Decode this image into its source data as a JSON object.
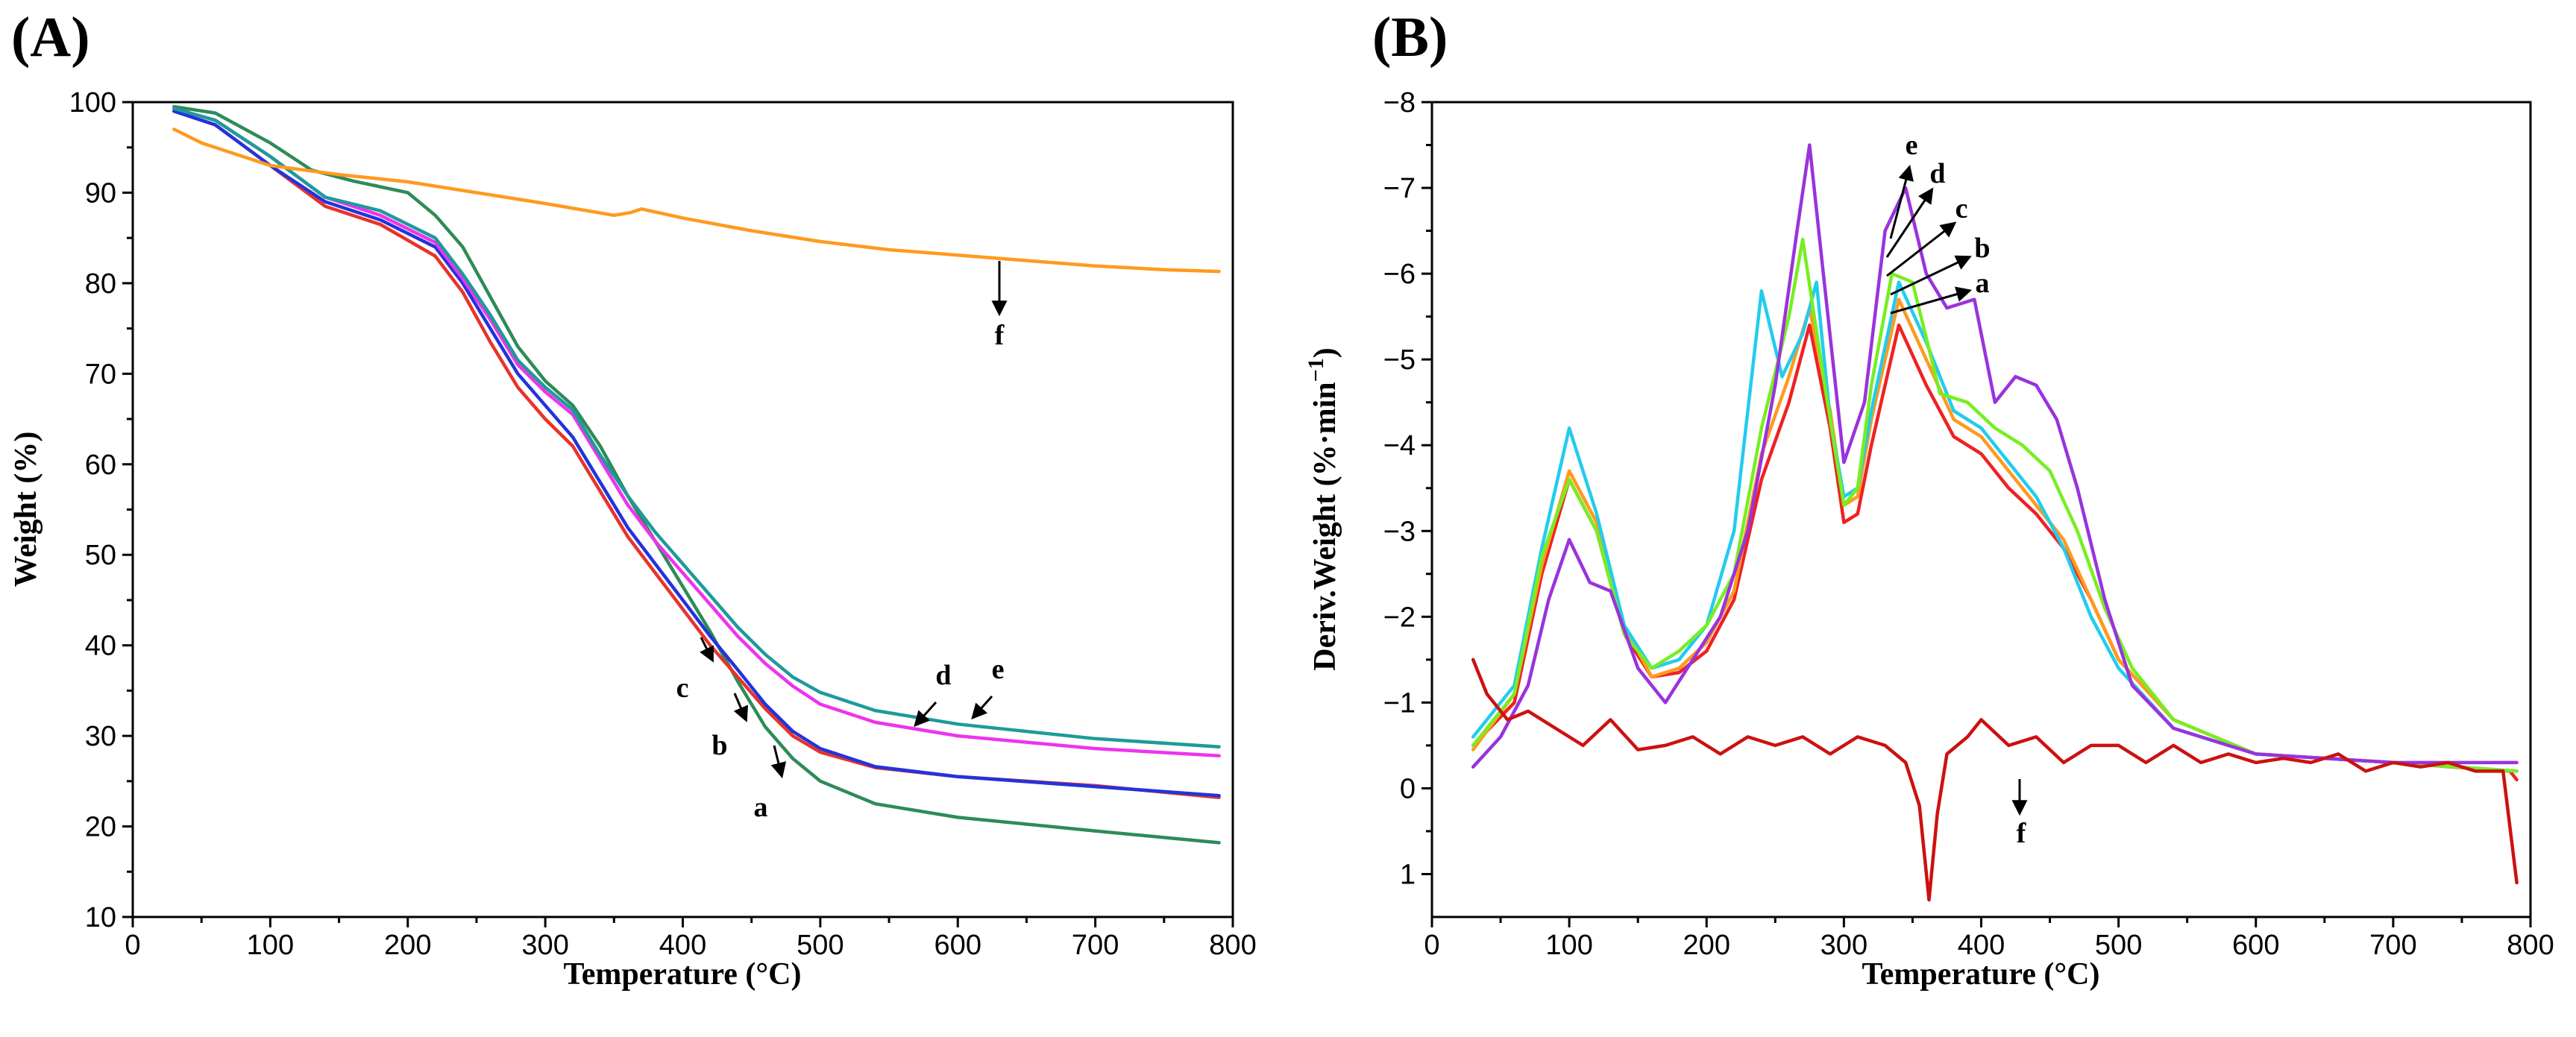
{
  "colors": {
    "a": "#2e8b57",
    "b": "#e8332a",
    "c": "#2233dd",
    "d": "#ee33ee",
    "e": "#1f9a9a",
    "f": "#ff9a1e",
    "pa": "#ee2222",
    "pb": "#ff9a1e",
    "pc": "#22ccee",
    "pd": "#77ee22",
    "pe": "#9933dd",
    "pf": "#cc1111"
  },
  "chart_data": [
    {
      "type": "line",
      "panel_label": "(A)",
      "xlabel": "Temperature (°C)",
      "ylabel": "Weight (%)",
      "xlim": [
        0,
        800
      ],
      "ylim": [
        10,
        100
      ],
      "xticks": [
        "0",
        "100",
        "200",
        "300",
        "400",
        "500",
        "600",
        "700",
        "800"
      ],
      "yticks": [
        "10",
        "20",
        "30",
        "40",
        "50",
        "60",
        "70",
        "80",
        "90",
        "100"
      ],
      "series": [
        {
          "name": "a",
          "color": "#2e8b57",
          "x": [
            30,
            60,
            100,
            130,
            160,
            200,
            220,
            240,
            260,
            280,
            300,
            320,
            340,
            360,
            380,
            400,
            420,
            440,
            460,
            480,
            500,
            540,
            600,
            700,
            790
          ],
          "y": [
            99.5,
            98.8,
            95.5,
            92.5,
            91.3,
            90,
            87.5,
            84,
            78.5,
            73,
            69.2,
            66.5,
            62,
            56.5,
            51.5,
            46.5,
            41.5,
            36,
            31,
            27.5,
            25,
            22.5,
            21,
            19.5,
            18.2
          ]
        },
        {
          "name": "b",
          "color": "#e8332a",
          "x": [
            30,
            60,
            100,
            140,
            180,
            220,
            240,
            260,
            280,
            300,
            320,
            340,
            360,
            380,
            400,
            420,
            440,
            460,
            480,
            500,
            540,
            600,
            700,
            790
          ],
          "y": [
            99,
            97.5,
            93,
            88.5,
            86.5,
            83,
            79,
            73.5,
            68.5,
            65,
            62,
            57,
            52,
            48,
            44,
            40,
            36.5,
            33,
            30,
            28.2,
            26.5,
            25.5,
            24.5,
            23.2
          ]
        },
        {
          "name": "c",
          "color": "#2233dd",
          "x": [
            30,
            60,
            100,
            140,
            180,
            220,
            240,
            260,
            280,
            300,
            320,
            340,
            360,
            380,
            400,
            420,
            440,
            460,
            480,
            500,
            540,
            600,
            700,
            790
          ],
          "y": [
            99,
            97.5,
            93,
            89,
            87,
            84,
            80,
            75,
            70,
            66.5,
            63,
            58,
            53,
            49,
            45,
            41,
            37.3,
            33.5,
            30.5,
            28.6,
            26.6,
            25.5,
            24.4,
            23.4
          ]
        },
        {
          "name": "d",
          "color": "#ee33ee",
          "x": [
            30,
            60,
            100,
            140,
            180,
            220,
            240,
            260,
            280,
            300,
            320,
            340,
            360,
            380,
            400,
            420,
            440,
            460,
            480,
            500,
            540,
            600,
            700,
            790
          ],
          "y": [
            99.3,
            98,
            94,
            89.5,
            87.5,
            84.5,
            80.5,
            76,
            71,
            68,
            65.5,
            60.5,
            55.5,
            51.5,
            48,
            44.5,
            41,
            38,
            35.5,
            33.5,
            31.5,
            30,
            28.6,
            27.8
          ]
        },
        {
          "name": "e",
          "color": "#1f9a9a",
          "x": [
            30,
            60,
            100,
            140,
            180,
            220,
            240,
            260,
            280,
            300,
            320,
            340,
            360,
            380,
            400,
            420,
            440,
            460,
            480,
            500,
            540,
            600,
            700,
            790
          ],
          "y": [
            99.3,
            98,
            94,
            89.5,
            88,
            85,
            81,
            76.5,
            71.5,
            68.5,
            66,
            61,
            56.5,
            52.5,
            49,
            45.5,
            42,
            39,
            36.5,
            34.8,
            32.8,
            31.3,
            29.7,
            28.8
          ]
        },
        {
          "name": "f",
          "color": "#ff9a1e",
          "x": [
            30,
            50,
            80,
            100,
            150,
            200,
            250,
            300,
            350,
            362,
            370,
            400,
            450,
            500,
            550,
            600,
            650,
            700,
            750,
            790
          ],
          "y": [
            97,
            95.5,
            94,
            93,
            92,
            91.2,
            90,
            88.8,
            87.5,
            87.8,
            88.2,
            87.2,
            85.8,
            84.6,
            83.7,
            83.1,
            82.5,
            81.9,
            81.5,
            81.3
          ]
        }
      ],
      "annotations": [
        "a",
        "b",
        "c",
        "d",
        "e",
        "f"
      ]
    },
    {
      "type": "line",
      "panel_label": "(B)",
      "xlabel": "Temperature (°C)",
      "ylabel": "Deriv.Weight (%·min",
      "ylabel_sup": "−1",
      "ylabel_end": ")",
      "xlim": [
        0,
        800
      ],
      "ylim": [
        1.5,
        -8
      ],
      "xticks": [
        "0",
        "100",
        "200",
        "300",
        "400",
        "500",
        "600",
        "700",
        "800"
      ],
      "yticks": [
        "−8",
        "−7",
        "−6",
        "−5",
        "−4",
        "−3",
        "−2",
        "−1",
        "0",
        "1"
      ],
      "series": [
        {
          "name": "a",
          "color": "#ee2222",
          "x": [
            30,
            60,
            80,
            100,
            120,
            140,
            160,
            180,
            200,
            220,
            240,
            260,
            275,
            290,
            300,
            310,
            320,
            340,
            360,
            380,
            400,
            420,
            440,
            460,
            480,
            500,
            540,
            600,
            700,
            785,
            790
          ],
          "y": [
            -0.5,
            -1,
            -2.5,
            -3.6,
            -3,
            -1.8,
            -1.3,
            -1.35,
            -1.6,
            -2.2,
            -3.6,
            -4.5,
            -5.4,
            -4.2,
            -3.1,
            -3.2,
            -4,
            -5.4,
            -4.7,
            -4.1,
            -3.9,
            -3.5,
            -3.2,
            -2.8,
            -2.2,
            -1.5,
            -0.8,
            -0.4,
            -0.3,
            -0.2,
            -0.1
          ]
        },
        {
          "name": "b",
          "color": "#ff9a1e",
          "x": [
            30,
            60,
            80,
            100,
            120,
            140,
            160,
            180,
            200,
            220,
            240,
            260,
            275,
            290,
            300,
            310,
            320,
            340,
            360,
            380,
            400,
            420,
            440,
            460,
            480,
            500,
            540,
            600,
            700,
            790
          ],
          "y": [
            -0.45,
            -1.1,
            -2.6,
            -3.7,
            -3.1,
            -1.9,
            -1.3,
            -1.4,
            -1.7,
            -2.3,
            -3.9,
            -4.8,
            -5.6,
            -4.4,
            -3.3,
            -3.4,
            -4.3,
            -5.7,
            -5,
            -4.3,
            -4.1,
            -3.7,
            -3.3,
            -2.9,
            -2.2,
            -1.5,
            -0.8,
            -0.4,
            -0.3,
            -0.2
          ]
        },
        {
          "name": "c",
          "color": "#22ccee",
          "x": [
            30,
            60,
            80,
            100,
            120,
            140,
            160,
            180,
            200,
            220,
            240,
            255,
            270,
            280,
            290,
            300,
            310,
            320,
            340,
            360,
            380,
            400,
            420,
            440,
            460,
            480,
            500,
            540,
            600,
            700,
            790
          ],
          "y": [
            -0.6,
            -1.2,
            -2.8,
            -4.2,
            -3.2,
            -1.9,
            -1.4,
            -1.5,
            -1.9,
            -3,
            -5.8,
            -4.8,
            -5.3,
            -5.9,
            -4.3,
            -3.4,
            -3.5,
            -4.4,
            -5.9,
            -5.2,
            -4.4,
            -4.2,
            -3.8,
            -3.4,
            -2.8,
            -2,
            -1.4,
            -0.7,
            -0.4,
            -0.3,
            -0.2
          ]
        },
        {
          "name": "d",
          "color": "#77ee22",
          "x": [
            30,
            60,
            80,
            100,
            120,
            140,
            160,
            180,
            200,
            220,
            240,
            260,
            270,
            285,
            300,
            310,
            320,
            335,
            350,
            370,
            390,
            410,
            430,
            450,
            470,
            490,
            510,
            540,
            600,
            700,
            790
          ],
          "y": [
            -0.5,
            -1.1,
            -2.7,
            -3.6,
            -3,
            -1.8,
            -1.4,
            -1.6,
            -1.9,
            -2.5,
            -4.2,
            -5.5,
            -6.4,
            -4.8,
            -3.3,
            -3.5,
            -4.7,
            -6,
            -5.9,
            -4.6,
            -4.5,
            -4.2,
            -4,
            -3.7,
            -3,
            -2.1,
            -1.4,
            -0.8,
            -0.4,
            -0.3,
            -0.2
          ]
        },
        {
          "name": "e",
          "color": "#9933dd",
          "x": [
            30,
            50,
            70,
            85,
            100,
            115,
            130,
            150,
            170,
            190,
            210,
            230,
            250,
            265,
            275,
            285,
            300,
            315,
            330,
            345,
            360,
            375,
            395,
            410,
            425,
            440,
            455,
            470,
            490,
            510,
            540,
            600,
            700,
            790
          ],
          "y": [
            -0.25,
            -0.6,
            -1.2,
            -2.2,
            -2.9,
            -2.4,
            -2.3,
            -1.4,
            -1,
            -1.5,
            -2,
            -3,
            -4.7,
            -6.4,
            -7.5,
            -6,
            -3.8,
            -4.5,
            -6.5,
            -7,
            -6,
            -5.6,
            -5.7,
            -4.5,
            -4.8,
            -4.7,
            -4.3,
            -3.5,
            -2.2,
            -1.2,
            -0.7,
            -0.4,
            -0.3,
            -0.3
          ]
        },
        {
          "name": "f",
          "color": "#cc1111",
          "x": [
            30,
            40,
            55,
            70,
            90,
            110,
            130,
            150,
            170,
            190,
            210,
            230,
            250,
            270,
            290,
            310,
            330,
            345,
            355,
            362,
            368,
            375,
            390,
            400,
            420,
            440,
            460,
            480,
            500,
            520,
            540,
            560,
            580,
            600,
            620,
            640,
            660,
            680,
            700,
            720,
            740,
            760,
            780,
            790
          ],
          "y": [
            -1.5,
            -1.1,
            -0.8,
            -0.9,
            -0.7,
            -0.5,
            -0.8,
            -0.45,
            -0.5,
            -0.6,
            -0.4,
            -0.6,
            -0.5,
            -0.6,
            -0.4,
            -0.6,
            -0.5,
            -0.3,
            0.2,
            1.3,
            0.3,
            -0.4,
            -0.6,
            -0.8,
            -0.5,
            -0.6,
            -0.3,
            -0.5,
            -0.5,
            -0.3,
            -0.5,
            -0.3,
            -0.4,
            -0.3,
            -0.35,
            -0.3,
            -0.4,
            -0.2,
            -0.3,
            -0.25,
            -0.3,
            -0.2,
            -0.2,
            1.1
          ]
        }
      ],
      "annotations": [
        "a",
        "b",
        "c",
        "d",
        "e",
        "f"
      ]
    }
  ]
}
